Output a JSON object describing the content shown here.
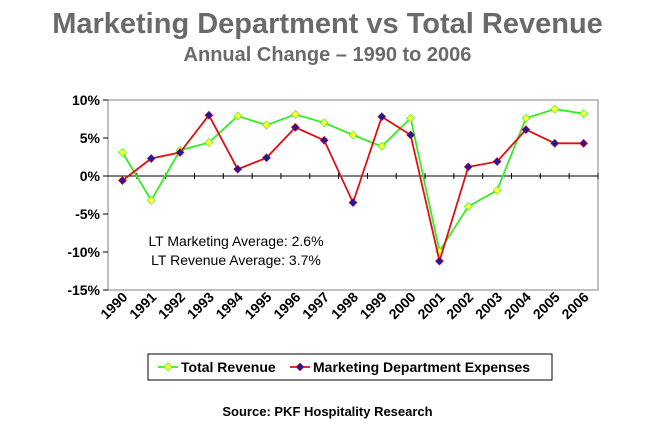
{
  "chart_data": {
    "type": "line",
    "title": "Marketing Department vs Total Revenue",
    "subtitle": "Annual Change – 1990 to 2006",
    "categories": [
      "1990",
      "1991",
      "1992",
      "1993",
      "1994",
      "1995",
      "1996",
      "1997",
      "1998",
      "1999",
      "2000",
      "2001",
      "2002",
      "2003",
      "2004",
      "2005",
      "2006"
    ],
    "ylim": [
      -15,
      10
    ],
    "yticks": [
      10,
      5,
      0,
      -5,
      -10,
      -15
    ],
    "ytick_labels": [
      "10%",
      "5%",
      "0%",
      "-5%",
      "-10%",
      "-15%"
    ],
    "grid": false,
    "legend_position": "bottom",
    "series": [
      {
        "name": "Total Revenue",
        "color": "#33ee22",
        "marker_color": "#ffff33",
        "marker": "diamond",
        "values": [
          3.1,
          -3.2,
          3.4,
          4.4,
          7.9,
          6.7,
          8.1,
          7.0,
          5.4,
          3.9,
          7.6,
          -9.9,
          -4.0,
          -1.9,
          7.6,
          8.8,
          8.2
        ]
      },
      {
        "name": "Marketing Department Expenses",
        "color": "#dd1111",
        "marker_color": "#1a1aa6",
        "marker": "diamond",
        "values": [
          -0.6,
          2.3,
          3.1,
          8.0,
          0.9,
          2.4,
          6.4,
          4.7,
          -3.5,
          7.8,
          5.4,
          -11.2,
          1.2,
          1.9,
          6.1,
          4.3,
          4.3
        ]
      }
    ],
    "annotations": [
      "LT Marketing Average:  2.6%",
      "LT Revenue Average:  3.7%"
    ]
  },
  "source": "Source: PKF Hospitality Research"
}
